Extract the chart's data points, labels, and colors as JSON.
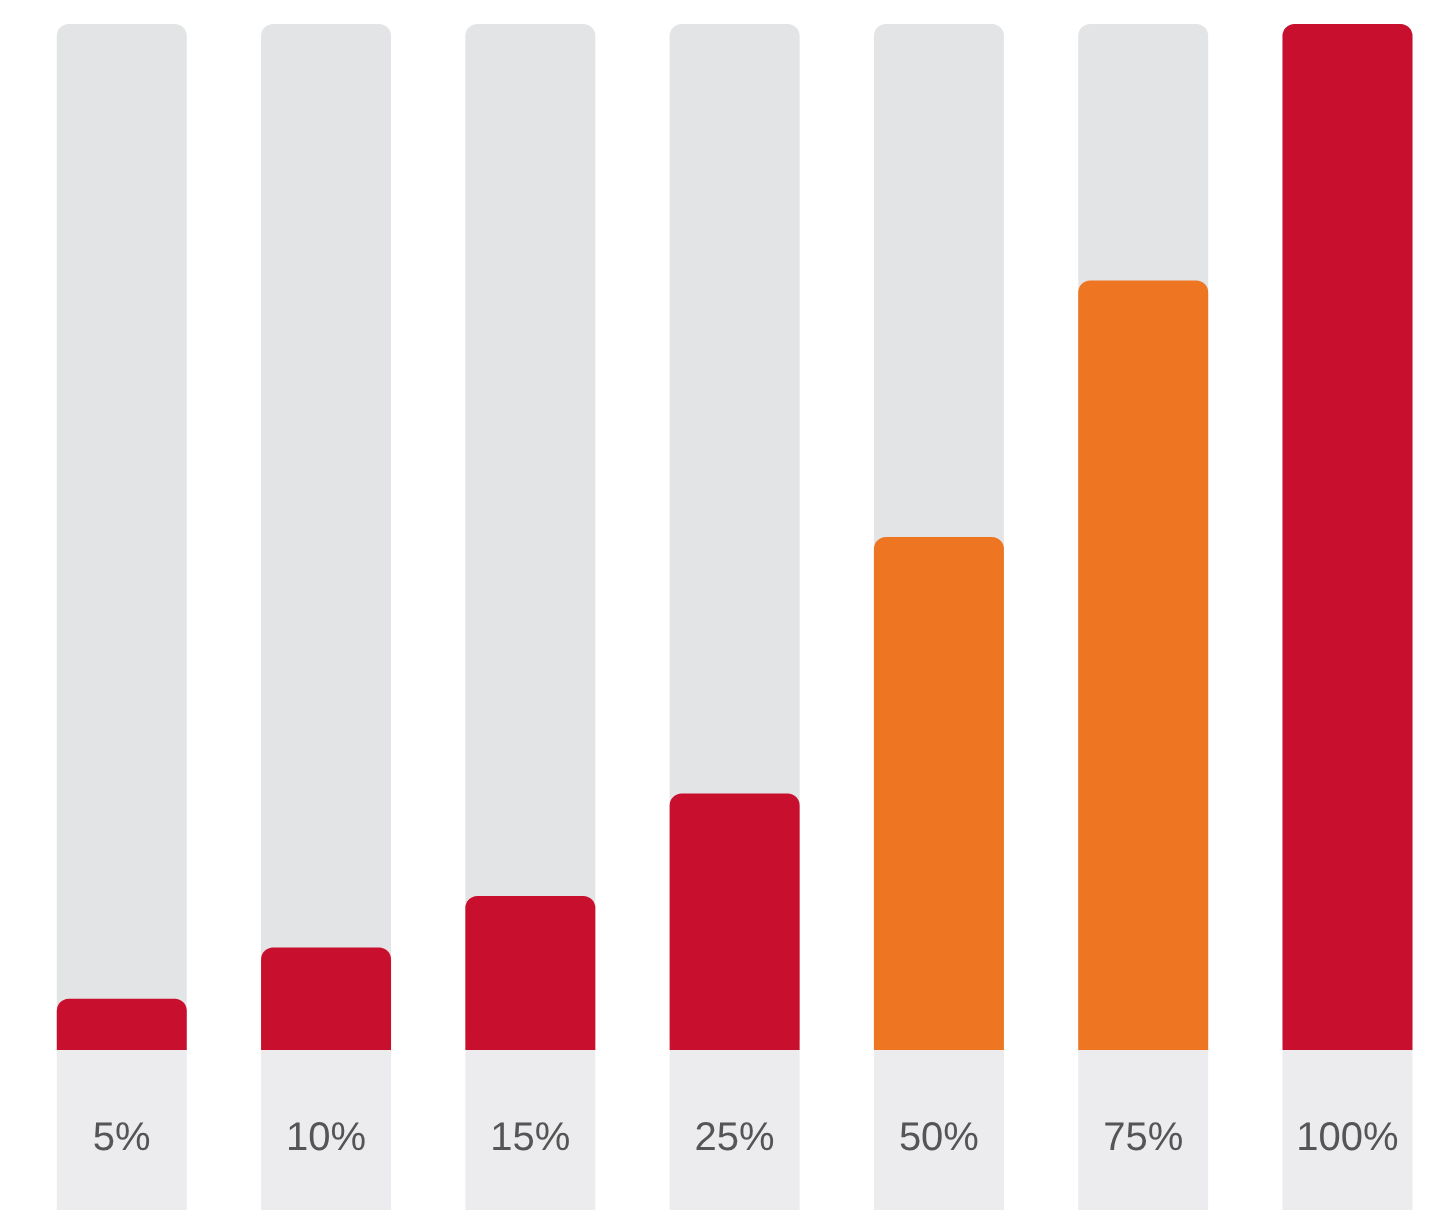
{
  "chart_data": {
    "type": "bar",
    "categories": [
      null,
      null,
      null,
      null,
      null,
      null,
      null
    ],
    "values": [
      5,
      10,
      15,
      25,
      50,
      75,
      100
    ],
    "value_labels": [
      "5%",
      "10%",
      "15%",
      "25%",
      "50%",
      "75%",
      "100%"
    ],
    "colors": [
      "#c8102e",
      "#c8102e",
      "#c8102e",
      "#c8102e",
      "#ee7623",
      "#ee7623",
      "#c8102e"
    ],
    "tick_labels": false
  }
}
